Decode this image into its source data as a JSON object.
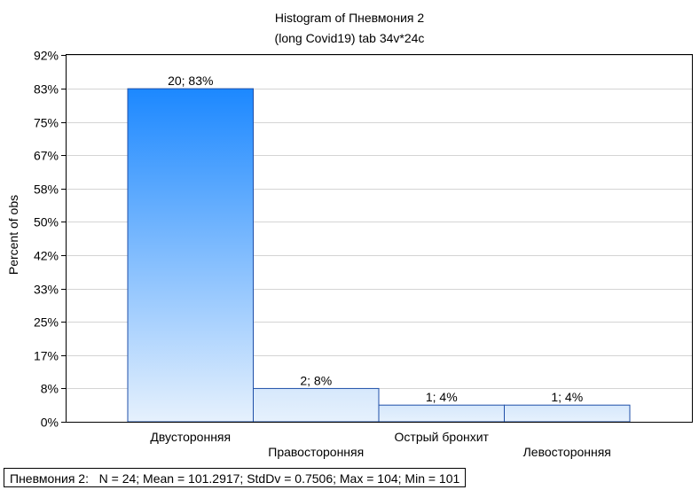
{
  "chart_data": {
    "type": "bar",
    "title": "Histogram of Пневмония 2",
    "subtitle": "(long Covid19) tab 34v*24c",
    "ylabel": "Percent of obs",
    "xlabel": "",
    "categories": [
      "Двусторонняя",
      "Правосторонняя",
      "Острый бронхит",
      "Левосторонняя"
    ],
    "counts": [
      20,
      2,
      1,
      1
    ],
    "values": [
      83.33,
      8.33,
      4.17,
      4.17
    ],
    "data_labels": [
      "20; 83%",
      "2; 8%",
      "1; 4%",
      "1; 4%"
    ],
    "ylim": [
      0,
      92
    ],
    "yticks": [
      0,
      8.33,
      16.67,
      25,
      33.33,
      41.67,
      50,
      58.33,
      66.67,
      75,
      83.33,
      91.67
    ],
    "ytick_labels": [
      "0%",
      "8%",
      "17%",
      "25%",
      "33%",
      "42%",
      "50%",
      "58%",
      "67%",
      "75%",
      "83%",
      "92%"
    ],
    "grid": true,
    "bar_color_top": "#1c88ff",
    "bar_color_bottom": "#e6f1fd",
    "bar_edge_color": "#1f4fa8"
  },
  "stats_text": "Пневмония 2:   N = 24; Mean = 101.2917; StdDv = 0.7506; Max = 104; Min = 101"
}
